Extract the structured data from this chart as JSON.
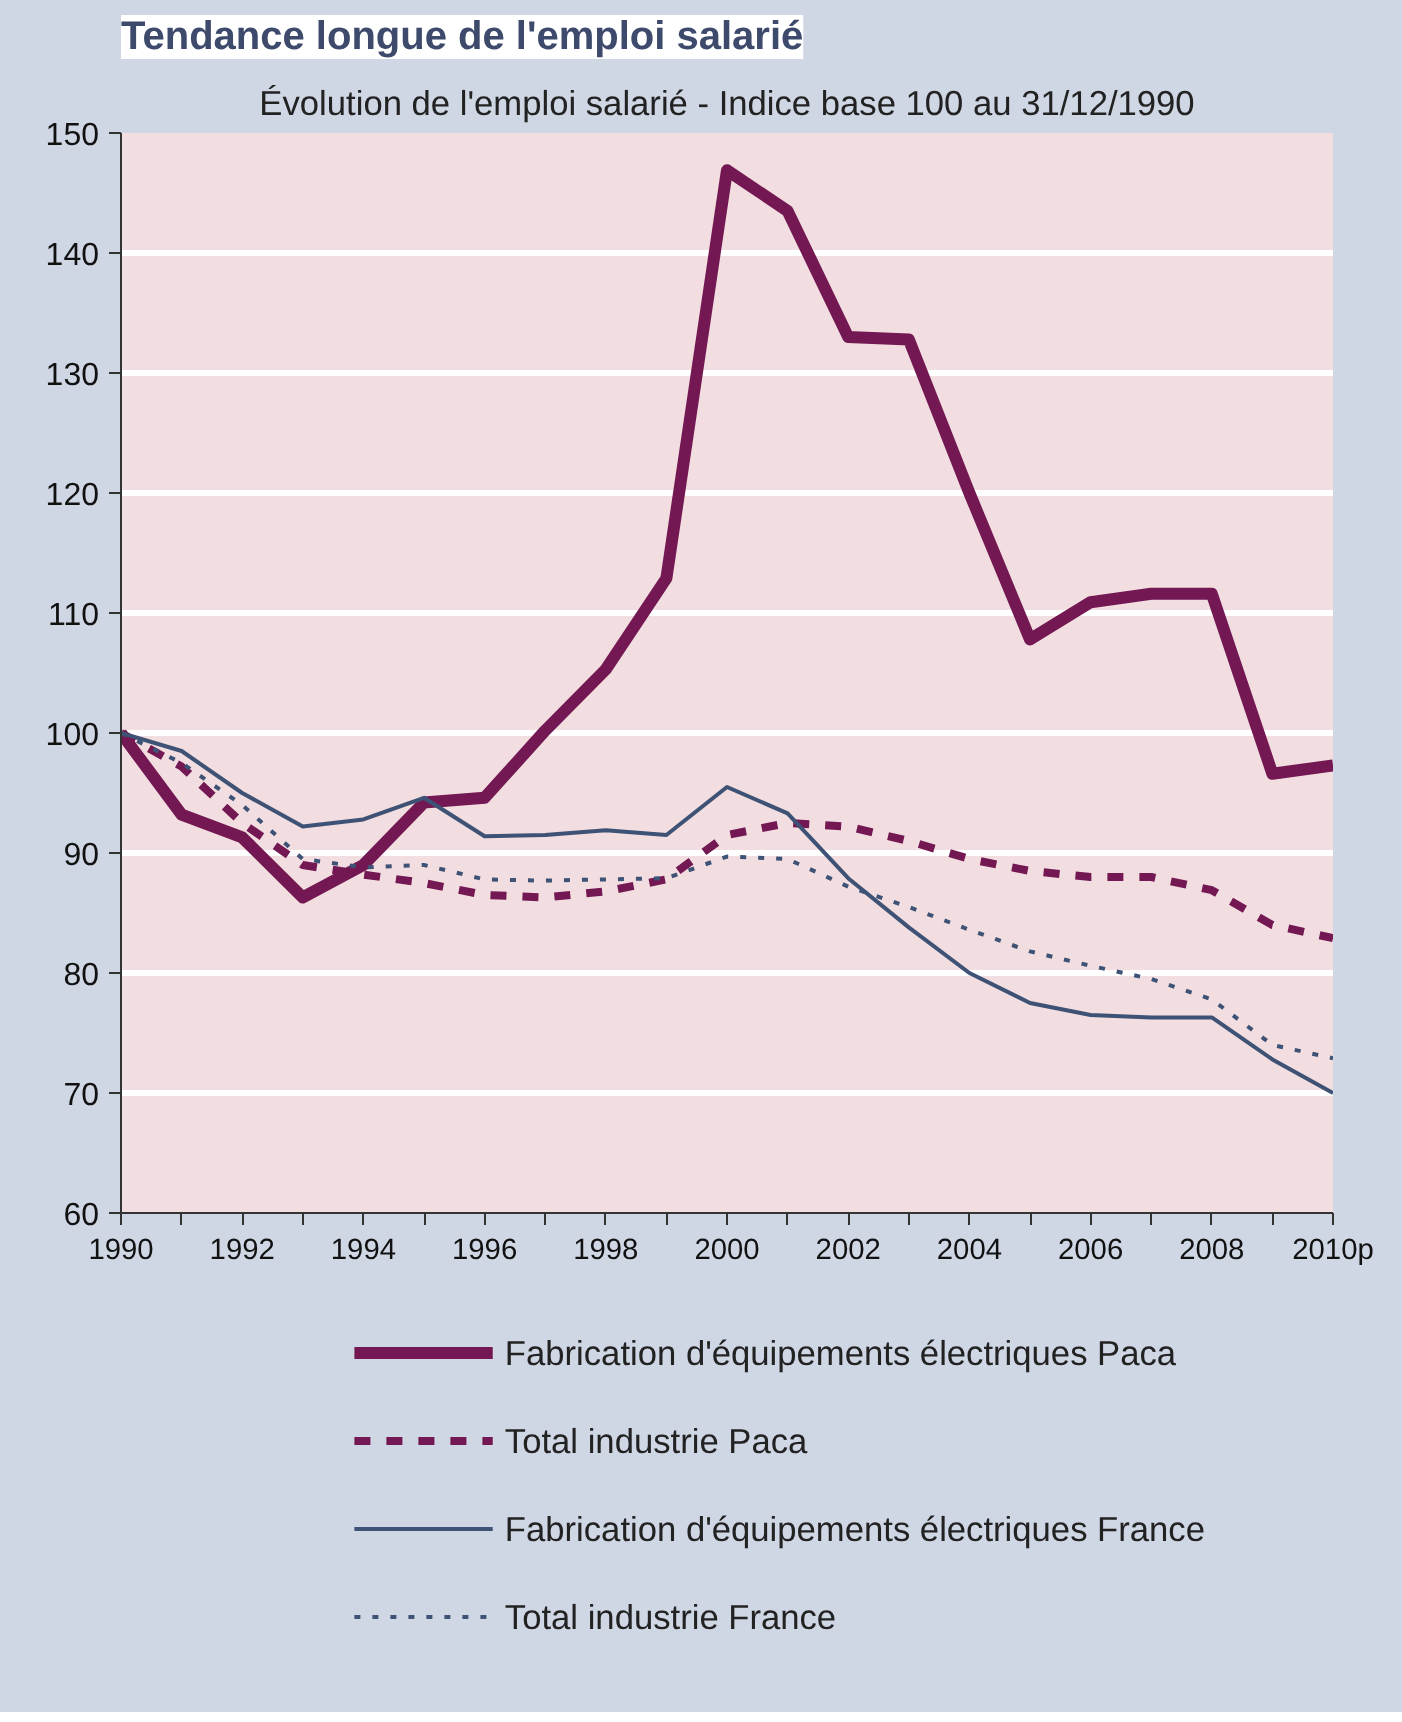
{
  "chart_data": {
    "type": "line",
    "title": "Tendance longue de l'emploi salarié",
    "subtitle": "Évolution de l'emploi salarié - Indice base 100 au 31/12/1990",
    "x": [
      1990,
      1991,
      1992,
      1993,
      1994,
      1995,
      1996,
      1997,
      1998,
      1999,
      2000,
      2001,
      2002,
      2003,
      2004,
      2005,
      2006,
      2007,
      2008,
      2009,
      2010
    ],
    "xlim": [
      1990,
      2010
    ],
    "xticks": [
      1990,
      {
        "value": 1991,
        "label": null
      },
      1992,
      {
        "value": 1993,
        "label": null
      },
      1994,
      {
        "value": 1995,
        "label": null
      },
      1996,
      {
        "value": 1997,
        "label": null
      },
      1998,
      {
        "value": 1999,
        "label": null
      },
      2000,
      {
        "value": 2001,
        "label": null
      },
      2002,
      {
        "value": 2003,
        "label": null
      },
      2004,
      {
        "value": 2005,
        "label": null
      },
      2006,
      {
        "value": 2007,
        "label": null
      },
      2008,
      {
        "value": 2009,
        "label": null
      },
      {
        "value": 2010,
        "label": "2010p"
      }
    ],
    "ylim": [
      60,
      150
    ],
    "yticks": [
      60,
      70,
      80,
      90,
      100,
      110,
      120,
      130,
      140,
      150
    ],
    "grid": "y",
    "legend": "bottom",
    "series": [
      {
        "name": "Fabrication d'équipements électriques Paca",
        "color": "#731852",
        "line_style": "solid",
        "values": [
          100,
          93.2,
          91.3,
          86.3,
          89,
          94.2,
          94.6,
          100.2,
          105.3,
          112.9,
          146.9,
          143.5,
          133,
          132.8,
          120,
          107.8,
          110.9,
          111.6,
          111.6,
          96.6,
          97.3
        ]
      },
      {
        "name": "Total industrie Paca",
        "color": "#731852",
        "line_style": "dashed",
        "values": [
          100,
          97.2,
          92.5,
          89,
          88.2,
          87.5,
          86.5,
          86.3,
          86.8,
          87.8,
          91.5,
          92.5,
          92.2,
          91,
          89.5,
          88.5,
          88,
          88,
          86.9,
          84,
          82.9
        ]
      },
      {
        "name": "Fabrication d'équipements électriques France",
        "color": "#3d5275",
        "line_style": "solid",
        "values": [
          100,
          98.5,
          95,
          92.2,
          92.8,
          94.6,
          91.4,
          91.5,
          91.9,
          91.5,
          95.5,
          93.3,
          87.9,
          83.8,
          80,
          77.5,
          76.5,
          76.3,
          76.3,
          72.8,
          70
        ]
      },
      {
        "name": "Total industrie France",
        "color": "#3d5275",
        "line_style": "dotted",
        "values": [
          100,
          97.5,
          94,
          89.5,
          88.8,
          89,
          87.8,
          87.7,
          87.8,
          87.9,
          89.7,
          89.5,
          87.2,
          85.5,
          83.6,
          81.8,
          80.6,
          79.5,
          77.8,
          74,
          72.9
        ]
      }
    ]
  }
}
